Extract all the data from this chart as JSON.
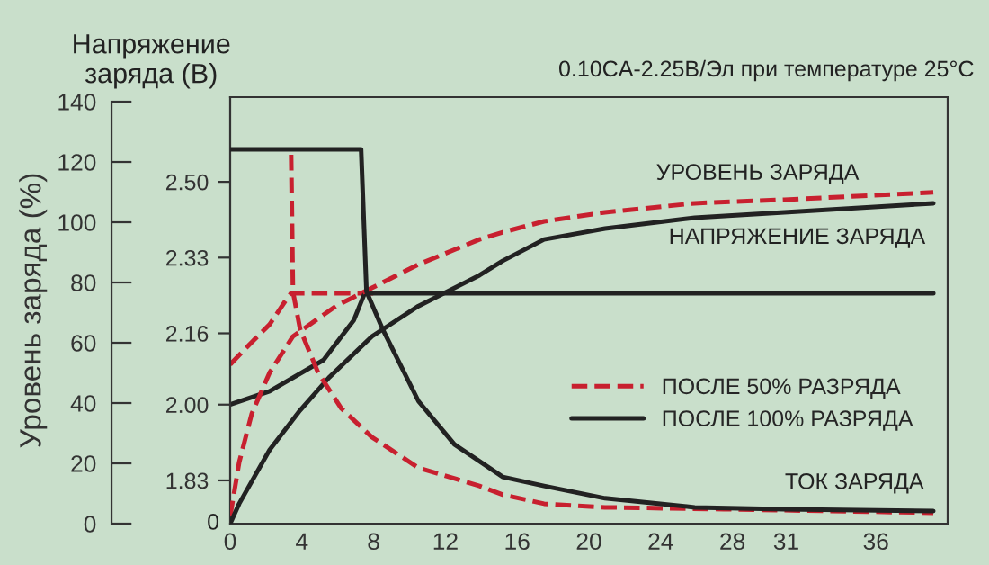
{
  "chart_data": {
    "type": "line",
    "title": "0.10CA-2.25В/Эл при температуре 25°C",
    "ylabel": "Уровень заряда (%)",
    "y2label": "Напряжение\nзаряда (В)",
    "xlim": [
      0,
      40
    ],
    "xticks": [
      0,
      4,
      8,
      12,
      16,
      20,
      24,
      28,
      31,
      36
    ],
    "ylim": [
      0,
      141.5
    ],
    "yticks": [
      0,
      20,
      40,
      60,
      80,
      100,
      120,
      140
    ],
    "y2lim": [
      1.733,
      2.69
    ],
    "y2ticks": [
      {
        "value": 1.83,
        "label": "1.83"
      },
      {
        "value": 2.0,
        "label": "2.00"
      },
      {
        "value": 2.16,
        "label": "2.16"
      },
      {
        "value": 2.33,
        "label": "2.33"
      },
      {
        "value": 2.5,
        "label": "2.50"
      }
    ],
    "grid": false,
    "legend": "bottom right",
    "series": [
      {
        "name": "ПОСЛЕ 50% РАЗРЯДА",
        "color": "#c8202f",
        "line_style": "dashed",
        "x": [
          0,
          0.5,
          1.2,
          2.2,
          3.5,
          5.9,
          7.9,
          10.5,
          13.9,
          15.2,
          17.5,
          20.9,
          25.9,
          30.9,
          39.2
        ],
        "values": [
          2.4,
          20.3,
          36.4,
          50.1,
          62.1,
          72.2,
          78.2,
          86.0,
          94.3,
          96.7,
          100.3,
          103.3,
          106.3,
          107.5,
          109.9
        ]
      },
      {
        "name": "ПОСЛЕ 100% РАЗРЯДА",
        "color": "#222222",
        "line_style": "solid",
        "x": [
          0,
          0.5,
          2.2,
          3.9,
          5.5,
          7.9,
          10.5,
          13.9,
          15.2,
          17.5,
          20.9,
          25.9,
          30.9,
          39.2
        ],
        "values": [
          0,
          6.6,
          24.5,
          37.6,
          48.4,
          62.1,
          72.2,
          82.4,
          87.2,
          94.3,
          97.9,
          101.5,
          103.3,
          106.3
        ]
      },
      {
        "color": "#c8202f",
        "line_style": "dashed",
        "axis": "y2",
        "x": [
          0,
          1.2,
          2.2,
          3.2,
          3.4,
          8
        ],
        "values": [
          2.09,
          2.14,
          2.18,
          2.24,
          2.25,
          2.25
        ]
      },
      {
        "color": "#222222",
        "line_style": "solid",
        "axis": "y2",
        "x": [
          0,
          2.2,
          5.2,
          6.9,
          7.5,
          39.2
        ],
        "values": [
          2.0,
          2.03,
          2.1,
          2.19,
          2.25,
          2.25
        ]
      },
      {
        "color": "#c8202f",
        "line_style": "dashed",
        "x": [
          3.4,
          3.5,
          3.9,
          4.9,
          6.2,
          7.9,
          10.5,
          13.9,
          15.2,
          17.5,
          20.9,
          27.5,
          39.2
        ],
        "values": [
          122.4,
          77.0,
          64.5,
          50.1,
          38.2,
          28.7,
          18.5,
          12.5,
          9.6,
          6.6,
          5.4,
          4.8,
          3.6
        ]
      },
      {
        "color": "#222222",
        "line_style": "solid",
        "x": [
          0,
          7.3,
          7.6,
          8.5,
          10.5,
          12.5,
          15.2,
          17.5,
          20.9,
          25.9,
          30.9,
          39.2
        ],
        "values": [
          124.2,
          124.2,
          77.0,
          64.5,
          40.6,
          26.3,
          15.5,
          12.5,
          8.4,
          5.4,
          4.8,
          4.2
        ]
      }
    ],
    "annotations": [
      "УРОВЕНЬ ЗАРЯДА",
      "НАПРЯЖЕНИЕ ЗАРЯДА",
      "ТОК ЗАРЯДА",
      "0"
    ]
  }
}
